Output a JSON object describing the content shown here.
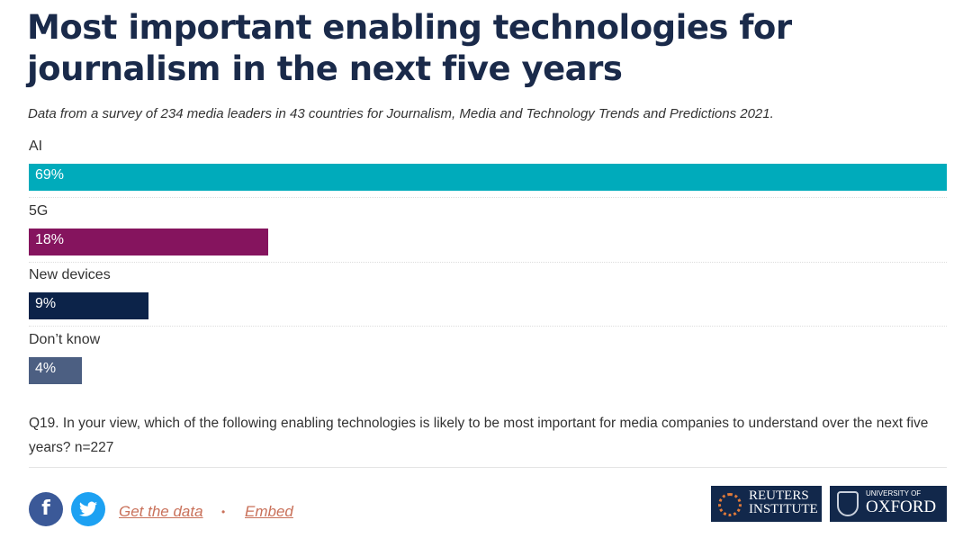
{
  "chart_data": {
    "type": "bar",
    "title": "Most important enabling technologies for journalism in the next five years",
    "subtitle": "Data from a survey of 234 media leaders in 43 countries for Journalism, Media and Technology Trends and Predictions 2021.",
    "categories": [
      "AI",
      "5G",
      "New devices",
      "Don’t know"
    ],
    "values": [
      69,
      18,
      9,
      4
    ],
    "labels": [
      "69%",
      "18%",
      "9%",
      "4%"
    ],
    "colors": [
      "#00abbb",
      "#85145e",
      "#0c2349",
      "#4c5f82"
    ],
    "xlim": [
      0,
      69
    ],
    "note": "Q19. In your view, which of the following enabling technologies is likely to be most important for media companies to understand over the next five years? n=227"
  },
  "footer": {
    "facebook_icon": "f",
    "get_data": "Get the data",
    "separator": "•",
    "embed": "Embed",
    "reuters_logo": "REUTERS INSTITUTE",
    "oxford_logo": "UNIVERSITY OF OXFORD",
    "reuters_line1": "REUTERS",
    "reuters_line2": "INSTITUTE",
    "oxford_line1": "UNIVERSITY OF",
    "oxford_line2": "OXFORD"
  }
}
